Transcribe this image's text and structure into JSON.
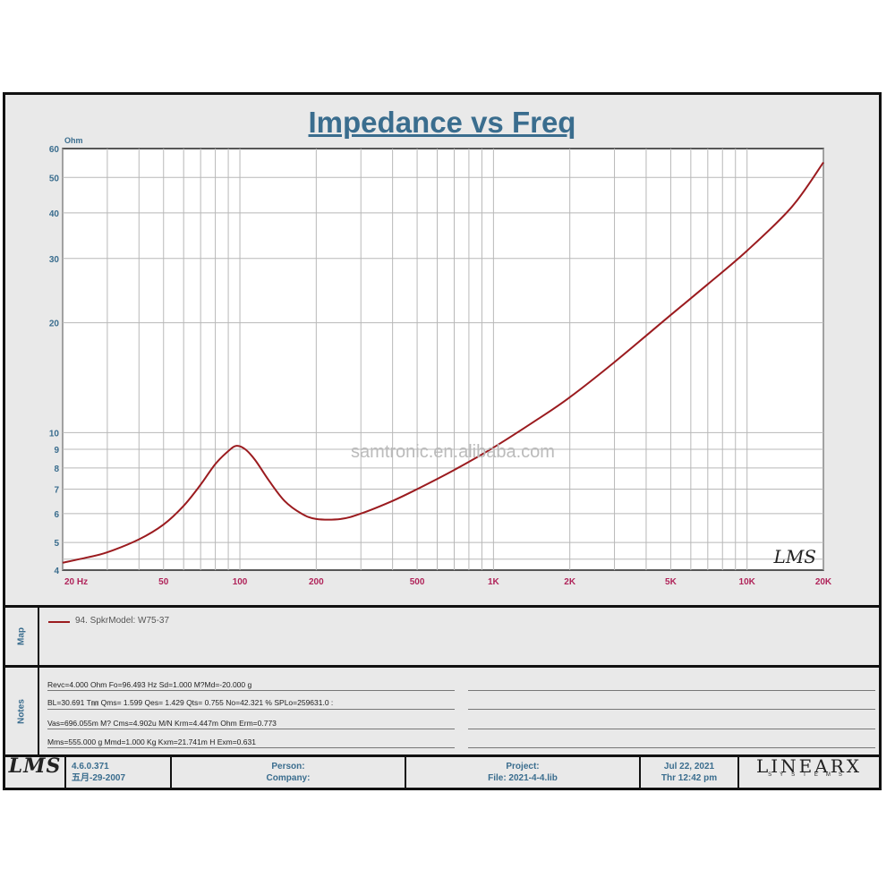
{
  "title": "Impedance vs Freq",
  "watermark": "samtronic.en.alibaba.com",
  "plot_logo": "LMS",
  "colors": {
    "curve": "#9b1b1f",
    "title": "#3a6d8e",
    "axis_label": "#3a6d8e",
    "x_tick": "#b0245a"
  },
  "chart_data": {
    "type": "line",
    "ylabel": "Ohm",
    "xscale": "log",
    "yscale": "log",
    "xlim": [
      20,
      20000
    ],
    "ylim": [
      4.2,
      60
    ],
    "grid": true,
    "x_ticks": [
      {
        "v": 20,
        "label": "20 Hz"
      },
      {
        "v": 50,
        "label": "50"
      },
      {
        "v": 100,
        "label": "100"
      },
      {
        "v": 200,
        "label": "200"
      },
      {
        "v": 500,
        "label": "500"
      },
      {
        "v": 1000,
        "label": "1K"
      },
      {
        "v": 2000,
        "label": "2K"
      },
      {
        "v": 5000,
        "label": "5K"
      },
      {
        "v": 10000,
        "label": "10K"
      },
      {
        "v": 20000,
        "label": "20K"
      }
    ],
    "y_ticks": [
      {
        "v": 60,
        "label": "60"
      },
      {
        "v": 50,
        "label": "50"
      },
      {
        "v": 40,
        "label": "40"
      },
      {
        "v": 30,
        "label": "30"
      },
      {
        "v": 20,
        "label": "20"
      },
      {
        "v": 10,
        "label": "10"
      },
      {
        "v": 9,
        "label": "9"
      },
      {
        "v": 8,
        "label": "8"
      },
      {
        "v": 7,
        "label": "7"
      },
      {
        "v": 6,
        "label": "6"
      },
      {
        "v": 5,
        "label": "5"
      },
      {
        "v": 4.2,
        "label": "4"
      }
    ],
    "series": [
      {
        "name": "94. SpkrModel: W75-37",
        "x": [
          20,
          25,
          30,
          40,
          50,
          60,
          70,
          80,
          90,
          97,
          105,
          115,
          130,
          150,
          175,
          200,
          250,
          300,
          400,
          500,
          700,
          1000,
          1500,
          2000,
          3000,
          5000,
          7000,
          10000,
          15000,
          20000
        ],
        "y": [
          4.4,
          4.55,
          4.7,
          5.1,
          5.6,
          6.3,
          7.2,
          8.2,
          8.9,
          9.2,
          9.0,
          8.4,
          7.4,
          6.5,
          6.0,
          5.8,
          5.8,
          6.0,
          6.5,
          7.0,
          7.9,
          9.1,
          10.9,
          12.5,
          15.6,
          21.0,
          25.5,
          31.5,
          41.5,
          55.0
        ]
      }
    ]
  },
  "map": {
    "tab_label": "Map",
    "legend_label": "94. SpkrModel: W75-37"
  },
  "notes": {
    "tab_label": "Notes",
    "lines": [
      "Revc=4.000 Ohm  Fo=96.493 Hz  Sd=1.000 M?Md=-20.000 g",
      "BL=30.691 T㎜  Qms= 1.599  Qes= 1.429  Qts= 0.755  No=42.321 %  SPLo=259631.0 :",
      "Vas=696.055m M? Cms=4.902u M/N  Krm=4.447m Ohm  Erm=0.773",
      "Mms=555.000 g  Mmd=1.000 Kg  Kxm=21.741m H  Exm=0.631"
    ]
  },
  "footer": {
    "logo": "LMS",
    "version": "4.6.0.371",
    "version_date": "五月-29-2007",
    "person_label": "Person:",
    "company_label": "Company:",
    "project_label": "Project:",
    "file_label": "File: 2021-4-4.lib",
    "date": "Jul 22, 2021",
    "time": "Thr 12:42 pm",
    "brand": "LINEARX",
    "brand_sub": "SYSTEMS"
  }
}
